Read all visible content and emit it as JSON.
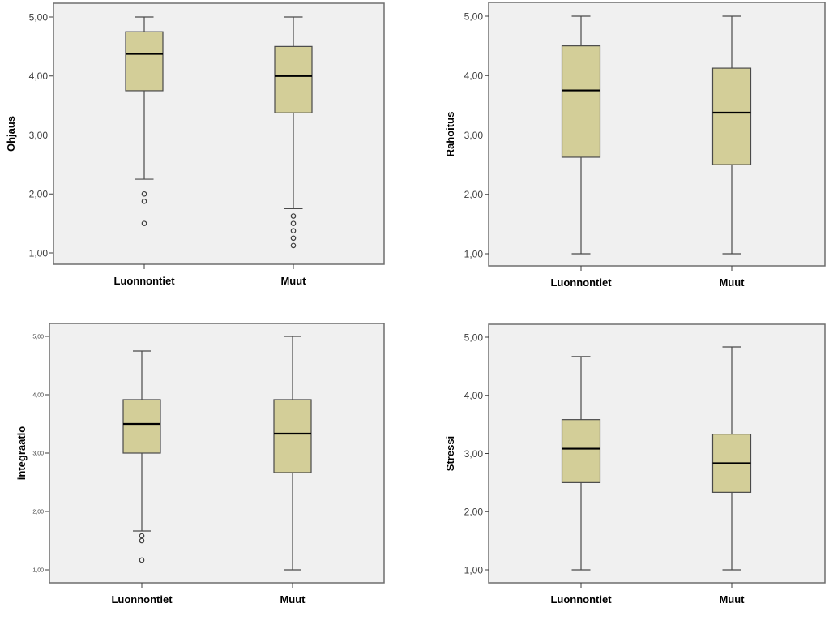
{
  "chart_data": [
    {
      "type": "box",
      "title": "",
      "xlabel": "",
      "ylabel": "Ohjaus",
      "ylim": [
        1,
        5
      ],
      "yticks": [
        "1,00",
        "2,00",
        "3,00",
        "4,00",
        "5,00"
      ],
      "categories": [
        "Luonnontiet",
        "Muut"
      ],
      "grid": false,
      "series": [
        {
          "name": "Luonnontiet",
          "min": 2.25,
          "q1": 3.75,
          "median": 4.375,
          "q3": 4.75,
          "max": 5.0,
          "outliers": [
            2.0,
            1.875,
            1.5
          ]
        },
        {
          "name": "Muut",
          "min": 1.75,
          "q1": 3.375,
          "median": 4.0,
          "q3": 4.5,
          "max": 5.0,
          "outliers": [
            1.625,
            1.5,
            1.375,
            1.25,
            1.125
          ]
        }
      ]
    },
    {
      "type": "box",
      "title": "",
      "xlabel": "",
      "ylabel": "Rahoitus",
      "ylim": [
        1,
        5
      ],
      "yticks": [
        "1,00",
        "2,00",
        "3,00",
        "4,00",
        "5,00"
      ],
      "categories": [
        "Luonnontiet",
        "Muut"
      ],
      "grid": false,
      "series": [
        {
          "name": "Luonnontiet",
          "min": 1.0,
          "q1": 2.625,
          "median": 3.75,
          "q3": 4.5,
          "max": 5.0,
          "outliers": []
        },
        {
          "name": "Muut",
          "min": 1.0,
          "q1": 2.5,
          "median": 3.375,
          "q3": 4.125,
          "max": 5.0,
          "outliers": []
        }
      ]
    },
    {
      "type": "box",
      "title": "",
      "xlabel": "",
      "ylabel": "integraatio",
      "ylim": [
        1,
        5
      ],
      "yticks": [
        "1,00",
        "2,00",
        "3,00",
        "4,00",
        "5,00"
      ],
      "categories": [
        "Luonnontiet",
        "Muut"
      ],
      "grid": false,
      "series": [
        {
          "name": "Luonnontiet",
          "min": 1.667,
          "q1": 3.0,
          "median": 3.5,
          "q3": 3.917,
          "max": 4.75,
          "outliers": [
            1.583,
            1.5,
            1.167
          ]
        },
        {
          "name": "Muut",
          "min": 1.0,
          "q1": 2.667,
          "median": 3.333,
          "q3": 3.917,
          "max": 5.0,
          "outliers": []
        }
      ]
    },
    {
      "type": "box",
      "title": "",
      "xlabel": "",
      "ylabel": "Stressi",
      "ylim": [
        1,
        5
      ],
      "yticks": [
        "1,00",
        "2,00",
        "3,00",
        "4,00",
        "5,00"
      ],
      "categories": [
        "Luonnontiet",
        "Muut"
      ],
      "grid": false,
      "series": [
        {
          "name": "Luonnontiet",
          "min": 1.0,
          "q1": 2.5,
          "median": 3.083,
          "q3": 3.583,
          "max": 4.667,
          "outliers": []
        },
        {
          "name": "Muut",
          "min": 1.0,
          "q1": 2.333,
          "median": 2.833,
          "q3": 3.333,
          "max": 4.833,
          "outliers": []
        }
      ]
    }
  ],
  "colors": {
    "box_fill": "#d3ce98",
    "plot_background": "#f0f0f0"
  }
}
